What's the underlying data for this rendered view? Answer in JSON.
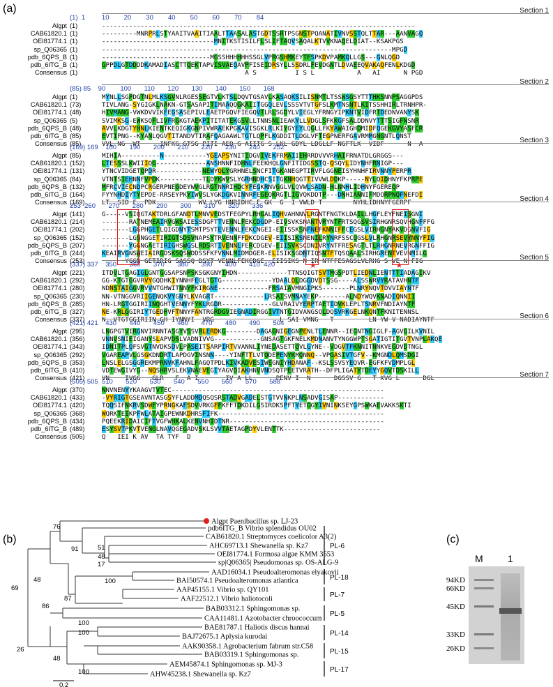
{
  "panels": {
    "a": "(a)",
    "b": "(b)",
    "c": "(c)"
  },
  "alignment": {
    "sections": [
      {
        "title": "Section 1",
        "ruler": "(1)  1         10        20        30        40        50        60        70        84",
        "rows": [
          {
            "name": "Algpt",
            "pos": "(1)",
            "seq": "---------------------------------------------------------------------------------"
          },
          {
            "name": "CAB61820.1",
            "pos": "(1)",
            "seq": "---------MNRPRLSTYAAITVAAITIAALTTAASALASTGDTSSRTPSGNSTPQANATIVNVSSTQLTTAR---AANVAGQ"
          },
          {
            "name": "OEI81774.1",
            "pos": "(1)",
            "seq": "-----------------------------MNITKSTISILFLSLIFTAQVSAQALKTVVKNAQELDIAT--KSAKPGS"
          },
          {
            "name": "sp_Q06365",
            "pos": "(1)",
            "seq": "---------------------------------------------------------------------------MPGD"
          },
          {
            "name": "pdb_6QPS_B",
            "pos": "(1)",
            "seq": "----------------------------MGSSHHHHHHSSGLVPRGSHMKEYTFSPKDVPAMKQLLGS---GNLQGD"
          },
          {
            "name": "pdb_6ITG_B",
            "pos": "(1)",
            "seq": "GPPDLGTDDDDKAMADIASCTTQEKTAPVISVAEQAVPFISEIDRSYLLSSDRLFEVDGNTLDVAEEQVAKAQFENLKDGD"
          },
          {
            "name": "Consensus",
            "pos": "(1)",
            "seq": "                                     A S          I S L           A   AI      N PGD"
          }
        ]
      },
      {
        "title": "Section 2",
        "ruler": "(85) 85    90        100       110       120       130       140       150       168",
        "rows": [
          {
            "name": "Algpt",
            "pos": "(1)",
            "seq": "MYNLLSGPDGTNLMLKSGVNLRGESSEGTVLKTSLDQVTGSAVLKASAQKSILISNMTLTSSWSGSYTTTHKSNNPSAGGPDS"
          },
          {
            "name": "CAB61820.1",
            "pos": "(73)",
            "seq": "TIVLANG-SYGIGKLNAKN-GTSASAPITIMAAQQGKAIITGGQLEVLSSSVTVTGFSLKMTNSNTLKITSSHHIRLTRNHPR-"
          },
          {
            "name": "OEI81774.1",
            "pos": "(48)",
            "seq": "HIVMANG-VWKDVVIKFEGSASEPIVLEAETPGQVFIEGQVTLRLSGDYLVIEGLYFRNGYIPKNTVIDFRTDEDNVANYSK"
          },
          {
            "name": "sp_Q06365",
            "pos": "(5)",
            "seq": "SVIMKSG-EWKSQFLIVFRGKGTAEKPITITATEKGSVLLTNNSNLIEAKYLLVDGLSFKKGFSALDDNVYTTTSIGFNSNR"
          },
          {
            "name": "pdb_6QPS_B",
            "pos": "(48)",
            "seq": "AVVLKDGTYHNLKIENTKEQIGKGNPIVWRAEKPGKAVISGKLRLKIYGYEYLQGLLFKYAWAIGHDMIDFQGEKGVYASFCR"
          },
          {
            "name": "pdb_6ITG_B",
            "pos": "(85)",
            "seq": "EVTIPNG--KYANLQGVTITANDVTIRAFQAGAAWLTGTLQPFLKGDDITLDGLVFTEGPNERFGAVRMMGNGNTLQNST"
          },
          {
            "name": "Consensus",
            "pos": "(85)",
            "seq": "VVL NG  WT     INFKG GTSG PITI AEQ G AIITG S LKL GDYL LDGLLF NGFTLK  VIDF      N  A"
          }
        ]
      },
      {
        "title": "Section 3",
        "ruler": "(169) 169    180       190       200       210       220       230       240       252",
        "rows": [
          {
            "name": "Algpt",
            "pos": "(85)",
            "seq": "MIHIA----------N-----------YGEAPSYNITIDGVIVEKFRMAIIEHRRDVVVRHAIFRNATDLGRGGS---"
          },
          {
            "name": "CAB61820.1",
            "pos": "(152)",
            "seq": "LTESSSLKWIIIQG-------------ANSHNNFIDHNLFEEKHQLGNFITIDGSSTQ-QSQYLIDYNHFRNIGP---"
          },
          {
            "name": "OEI81774.1",
            "pos": "(131)",
            "seq": "YTNCVIDGETQPDR------------NEWYQLYGRHNELSNCFITGKANEGPTIRVFLGGNEISYHNHFIRVNNYPERPR"
          },
          {
            "name": "sp_Q06365",
            "pos": "(84)",
            "seq": "VTNTSIEHNNFVPDK-----------TLDYKWVSLYGRHNDHCSITGKNHQGTTIVVWLDDKP-----NYLQIDHNYFKPRPE"
          },
          {
            "name": "pdb_6QPS_B",
            "pos": "(132)",
            "seq": "MFRCVIECNDPCRGERPNEGDEYWVGLRGTNNRIHDCYFEGKRNVGGLVLQVWLSADN-HLNNHLIDHNYFGEREQP"
          },
          {
            "name": "pdb_6ITG_B",
            "pos": "(164)",
            "seq": "FYYNHDIYTYEPDE-RRSEYPKYIWVSLYGKDGKVINNRFEGEQKRGTLIGVQKDDTP---DNHIANNIFMDQRPNQFNEFDI"
          },
          {
            "name": "Consensus",
            "pos": "(169)",
            "seq": "LT  SID F  PDK           WV LYG HNRIDHC F GK  G  I VWLD T        NYHLIDHNYFGERPF"
          }
        ]
      },
      {
        "title": "Section 4",
        "ruler": "253  260       270       280       290       300       310       320       336",
        "rows": [
          {
            "name": "Algpt",
            "pos": "(141)",
            "seq": "G-----VSIQGTAKTDRLGFANDTLMNVVEDSTFEGPYLRHGALIQHVAHNNVLRGNTFNGTKLDAILLHGFLEYFNEISGNI"
          },
          {
            "name": "CAB61820.1",
            "pos": "(214)",
            "seq": "-------RATNEMEAIRVGWSAIESSDGFTTVENNLFEKCDGDP-EIVSVKSNANTVRYNTFRTSQGSVSIRHGNRSQVHGNFFFG"
          },
          {
            "name": "OEI81774.1",
            "pos": "(202)",
            "seq": "-------LGGPHGETLQIGDNYTSMTPSYTEVENNLFEKCNGEI-EIISSKSNFNEFKNNIFFCEGSLVIRHGNYAKVDGNVFIG"
          },
          {
            "name": "sp_Q06365",
            "pos": "(152)",
            "seq": "-------LGSNGGETIRIGTSDSVNAPSYTRVENNFFDKCDGEV-EIISIKSNENILRYNRFSSCQGSLVLRHGNRSEVYNNYFIG"
          },
          {
            "name": "pdb_6QPS_B",
            "pos": "(207)",
            "seq": "-------YGGNGAETIRIGHSWGSLRDSRTIVENNLFERCDGEV-EIISVKSCDNIVRYNTFRESAGTLTLRHGNRNEVRGNFFIG"
          },
          {
            "name": "pdb_6ITG_B",
            "pos": "(244)",
            "seq": "KEAIRVGNSWEIAIRGDSKSQSWDDSSFKFVNNLMIDMDGER-ELISIKSGDNTIQSNTFTQSQAALSIRHGRENTVEVNMILG"
          },
          {
            "name": "Consensus",
            "pos": "(253)",
            "seq": "      YGGN GETIRIG SASSQ DSYT VENNLFEKCDGE  EIISIKS N IR NTFFESAGSLVLRHG S VE N FIG"
          }
        ]
      },
      {
        "title": "Section 5",
        "ruler": "(337) 337    350       360       370       380       390       400       410  420",
        "rows": [
          {
            "name": "Algpt",
            "pos": "(221)",
            "seq": "ITDVLTGAGIGLGNTGGSAPSNPSKSGKGNYIHDN-------------TTNSQIGTSVTMGSPDTLIEDNLIENTTTIADAGIKV"
          },
          {
            "name": "CAB61820.1",
            "pos": "(292)",
            "seq": "GG-KTGTGGVRVYGQDHKIYNNHFEGLTGTG-------------YDAALQLDGGDVDTSSG----ALSSWRVYRATAVHNTF"
          },
          {
            "name": "OEI81774.1",
            "pos": "(280)",
            "seq": "NDNSTAIGGVRVVNTGHWITNNYFKIRGNE-------------FRSAIAVMNGIPKS-------PLNRYNQVTDVVIAYNTF"
          },
          {
            "name": "sp_Q06365",
            "pos": "(230)",
            "seq": "NN-VTNGGVRIIGENQKVYGNYLKVAGRT-------------LRSAISVMNAYEKP-------ALNDYWQVKNADIQNNII"
          },
          {
            "name": "pdb_6QPS_B",
            "pos": "(285)",
            "seq": "HN-LRGTGGIRIINQGHTVENNYFYKLRGDR-------------GLVRAIVYERPTAETIDVKLEPLTSNRVFNDIAYNTF"
          },
          {
            "name": "pdb_6ITG_B",
            "pos": "(327)",
            "seq": "NE-KRLGGIRIYTGEDHVFTNNYFANTRGRDGVIEGNADIRGGIVTNTGIDVANGSQLDQSVRKGELNKQNTFKNITENNSL"
          },
          {
            "name": "Consensus",
            "pos": "(337)",
            "seq": "N  VTGTGGIRIIN GH IYNNYI  VRG                 L SAI VMNG   T         LN YW V NADIAYNTF"
          }
        ]
      },
      {
        "title": "Section 6",
        "ruler": "(421) 421    430       440       450       460       470       480       490       504",
        "rows": [
          {
            "name": "Algpt",
            "pos": "(295)",
            "seq": "LNGPGTVIRGNVIRNNTASGYVSSVRLERDKG--------DAGAGNIGEGNPENLTLENNR--IEGNTNGIGLF-AGVGILKVNIL"
          },
          {
            "name": "CAB61820.1",
            "pos": "(356)",
            "seq": "VNNVSNIEIGANYSLAPVDSLVADNIVVG------------GNSAGTGKFNELKMDNANVTYNGGWPTSGATIGTITGVTVNPLAKQE"
          },
          {
            "name": "OEI81774.1",
            "pos": "(343)",
            "seq": "IDNITPLQFSVGTNVDKSDVLPASEITSARPIRTVVANNLIYNEDASETTQVLGYNE--VDGVTFKNNITNNKVEGDVDTNGL"
          },
          {
            "name": "sp_Q06365",
            "pos": "(292)",
            "seq": "VGAREAPVLGSGKDNDRTLAPDGVINSNN----YINFTTLVTQDEPENYKMQNNQ--VPGASIVTGFV--KMGNDLQMSDGI"
          },
          {
            "name": "pdb_6QPS_B",
            "pos": "(353)",
            "seq": "LNSLELGSGGREKMPRNVKFAHNLFAGQTPDLKIVKADVESIWEGNIYHDANAF--KSLSSVSYEQVR-EGFKFVDMPLGL"
          },
          {
            "name": "pdb_6ITG_B",
            "pos": "(410)",
            "seq": "VDTEWGIVYG--NQSHRVSLEKVNAEVEGIYAGVDIAKHNVVNDSQTPEETVRATH--DFPLIGATYTDEYYGQVTDSKILL"
          },
          {
            "name": "Consensus",
            "pos": "(421)",
            "seq": "VN    IVGG   GLR   F  A I       IV A LL      PENV I  N      DGSSV G   T KVG L      DGL"
          }
        ]
      },
      {
        "title": "Section 7",
        "ruler": "(505) 505  510       520       530       540       550       560       570       588",
        "rows": [
          {
            "name": "Algpt",
            "pos": "(370)",
            "seq": "NNVNENYYKAAGVTVTEC-------------------------------------------------------"
          },
          {
            "name": "CAB61820.1",
            "pos": "(433)",
            "seq": "-VYRIGTGSEAVNTASGSYFLADDMDQSQSRSTADVGADELSTGTVVNKPLNSADVGISAP------------"
          },
          {
            "name": "OEI81774.1",
            "pos": "(420)",
            "seq": "TQQSIFNKRVSDWFYPRNGKAFSDVVRKGFFKFFTDKDILGSIRDKSPFTYETGGYIVNINKSEYGPSWKAEVAKKSKTI"
          },
          {
            "name": "sp_Q06365",
            "pos": "(368)",
            "seq": "WQRKTEIKPFWLATAIGPEWNKDHRSFIFK-------------------------------------------"
          },
          {
            "name": "pdb_6QPS_B",
            "pos": "(434)",
            "seq": "PQEEKRIDAICIFTVGFWHKALKENVNHIDTNR----------------------------------------"
          },
          {
            "name": "pdb_6ITG_B",
            "pos": "(489)",
            "seq": "ESYSVTPKVTVENGLNAVQGEGADVSKLSVVTAETAGPDYVLENTTK-------------------------"
          },
          {
            "name": "Consensus",
            "pos": "(505)",
            "seq": "Q   IEI K AV  TA TYF  D"
          }
        ]
      }
    ]
  },
  "tree": {
    "tips": [
      {
        "id": "Algpt",
        "label": "Algpt Paenibacillus sp. LJ-23"
      },
      {
        "id": "6ITG",
        "label": "pdb6ITG_B Vibrio splendidus OU02"
      },
      {
        "id": "CAB61820",
        "label": "CAB61820.1 Streptomyces coelicolor A3(2)"
      },
      {
        "id": "AHC69713",
        "label": "AHC69713.1 Shewanella sp. Kz7"
      },
      {
        "id": "OEI81774",
        "label": "OEI81774.1 Formosa algae KMM 3553"
      },
      {
        "id": "Q06365",
        "label": "sp|Q06365| Pseudomonas sp. OS-ALG-9"
      },
      {
        "id": "AAD16034",
        "label": "AAD16034.1 Pseudoalteromonas elyakovii"
      },
      {
        "id": "BAI50574",
        "label": "BAI50574.1 Pseudoalteromonas atlantica"
      },
      {
        "id": "AAP45155",
        "label": "AAP45155.1 Vibrio sp. QY101"
      },
      {
        "id": "AAF22512",
        "label": "AAF22512.1 Vibrio haliotocoli"
      },
      {
        "id": "BAB03312",
        "label": "BAB03312.1 Sphingomonas sp."
      },
      {
        "id": "CAA11481",
        "label": "CAA11481.1 Azotobacter chroococcum"
      },
      {
        "id": "BAE81787",
        "label": "BAE81787.1 Haliotis discus hannai"
      },
      {
        "id": "BAJ72675",
        "label": "BAJ72675.1 Aplysia kurodai"
      },
      {
        "id": "AAK90358",
        "label": "AAK90358.1 Agrobacterium fabrum str.C58"
      },
      {
        "id": "BAB03319",
        "label": "BAB03319.1 Sphingomonas sp."
      },
      {
        "id": "AEM45874",
        "label": "AEM45874.1 Sphingomonas sp. MJ-3"
      },
      {
        "id": "AHW45238",
        "label": "AHW45238.1 Shewanella sp. Kz7"
      }
    ],
    "bootstraps": [
      "76",
      "91",
      "51",
      "48",
      "17",
      "48",
      "69",
      "100",
      "87",
      "86",
      "100",
      "100",
      "26",
      "48",
      "100"
    ],
    "families": [
      "PL-6",
      "PL-18",
      "PL-7",
      "PL-5",
      "PL-14",
      "PL-15",
      "PL-17"
    ],
    "scale": "0.2"
  },
  "gel": {
    "lanes": [
      "M",
      "1"
    ],
    "markers": [
      "94KD",
      "66KD",
      "45KD",
      "33KD",
      "26KD"
    ]
  }
}
